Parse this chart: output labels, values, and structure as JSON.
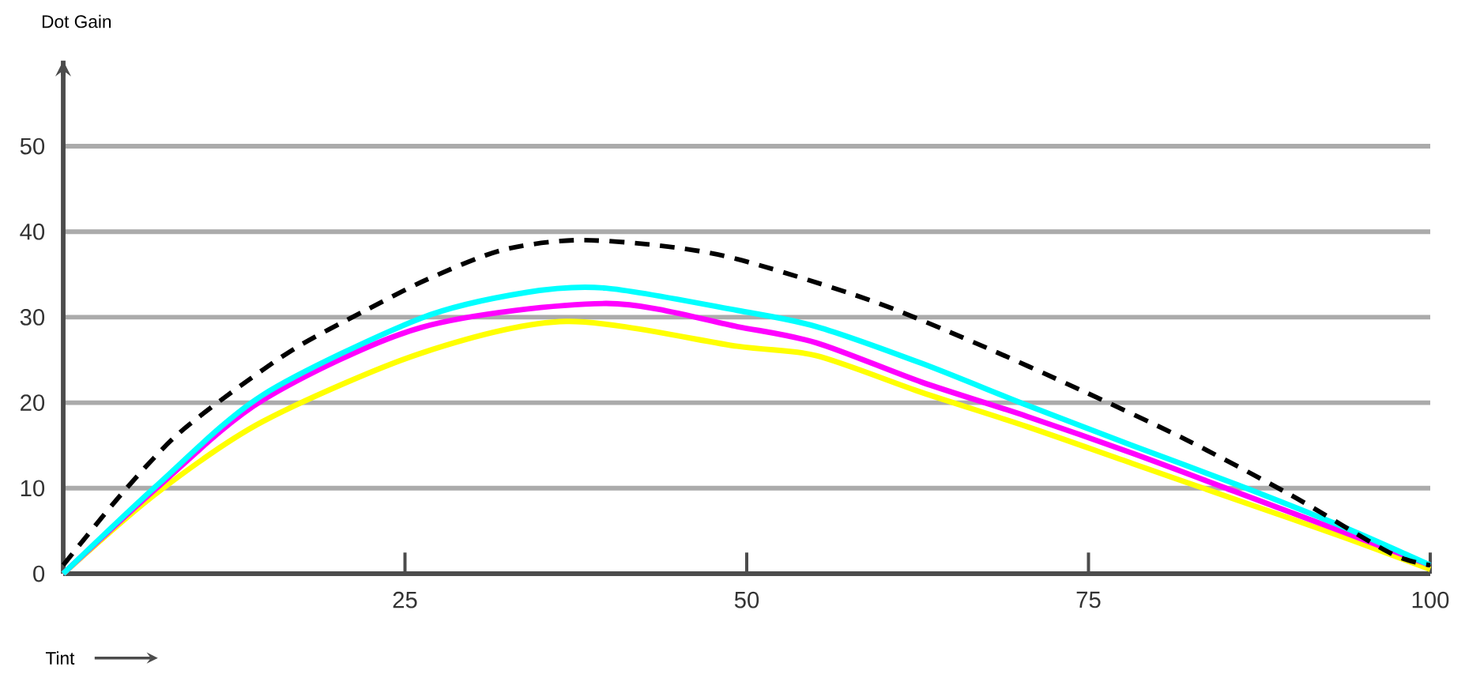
{
  "chart_data": {
    "type": "line",
    "xlabel": "Tint",
    "ylabel": "Dot Gain",
    "xlim": [
      0,
      100
    ],
    "ylim": [
      0,
      60
    ],
    "xticks": [
      {
        "value": 0,
        "label": null
      },
      25,
      50,
      75,
      100
    ],
    "yticks": [
      0,
      10,
      20,
      30,
      40,
      50
    ],
    "grid": "y",
    "series": [
      {
        "color": "#000000",
        "line_style": "dashed",
        "x": [
          0,
          4.2,
          8.1,
          12.3,
          17,
          22,
          26.6,
          32,
          37.4,
          43.5,
          49.3,
          59,
          66.7,
          74.4,
          82.1,
          89.8,
          97.1,
          100
        ],
        "values": [
          1,
          9.2,
          15.9,
          21.2,
          26.4,
          30.7,
          34.4,
          37.8,
          39,
          38.4,
          36.8,
          32,
          27,
          21.5,
          15.7,
          9.2,
          2.4,
          1
        ]
      },
      {
        "color": "#00ffff",
        "line_style": "solid",
        "x": [
          0,
          6.9,
          14.6,
          26.2,
          33.9,
          39.7,
          49.3,
          55.1,
          62.8,
          70.5,
          78.2,
          85.9,
          93.6,
          100
        ],
        "values": [
          0,
          10.4,
          20.9,
          29.9,
          32.9,
          33.4,
          30.8,
          28.9,
          24.6,
          19.7,
          15,
          10.4,
          5.5,
          1
        ]
      },
      {
        "color": "#ff00ff",
        "line_style": "solid",
        "x": [
          0,
          6.9,
          14.6,
          26.2,
          39.7,
          49.3,
          55.1,
          62.8,
          70.5,
          78.2,
          85.9,
          93.6,
          100
        ],
        "values": [
          0,
          10.1,
          20.3,
          28.8,
          31.6,
          28.9,
          27,
          22.4,
          18.4,
          14.1,
          9.5,
          4.9,
          1
        ]
      },
      {
        "color": "#ffff00",
        "line_style": "solid",
        "x": [
          0,
          6.9,
          14.6,
          26.2,
          36.8,
          49.3,
          55.1,
          62.8,
          70.5,
          78.2,
          85.9,
          93.6,
          100
        ],
        "values": [
          0,
          9.5,
          17.8,
          25.8,
          29.5,
          26.6,
          25.5,
          21.2,
          17.2,
          12.9,
          8.6,
          4.3,
          0.5
        ]
      }
    ]
  }
}
